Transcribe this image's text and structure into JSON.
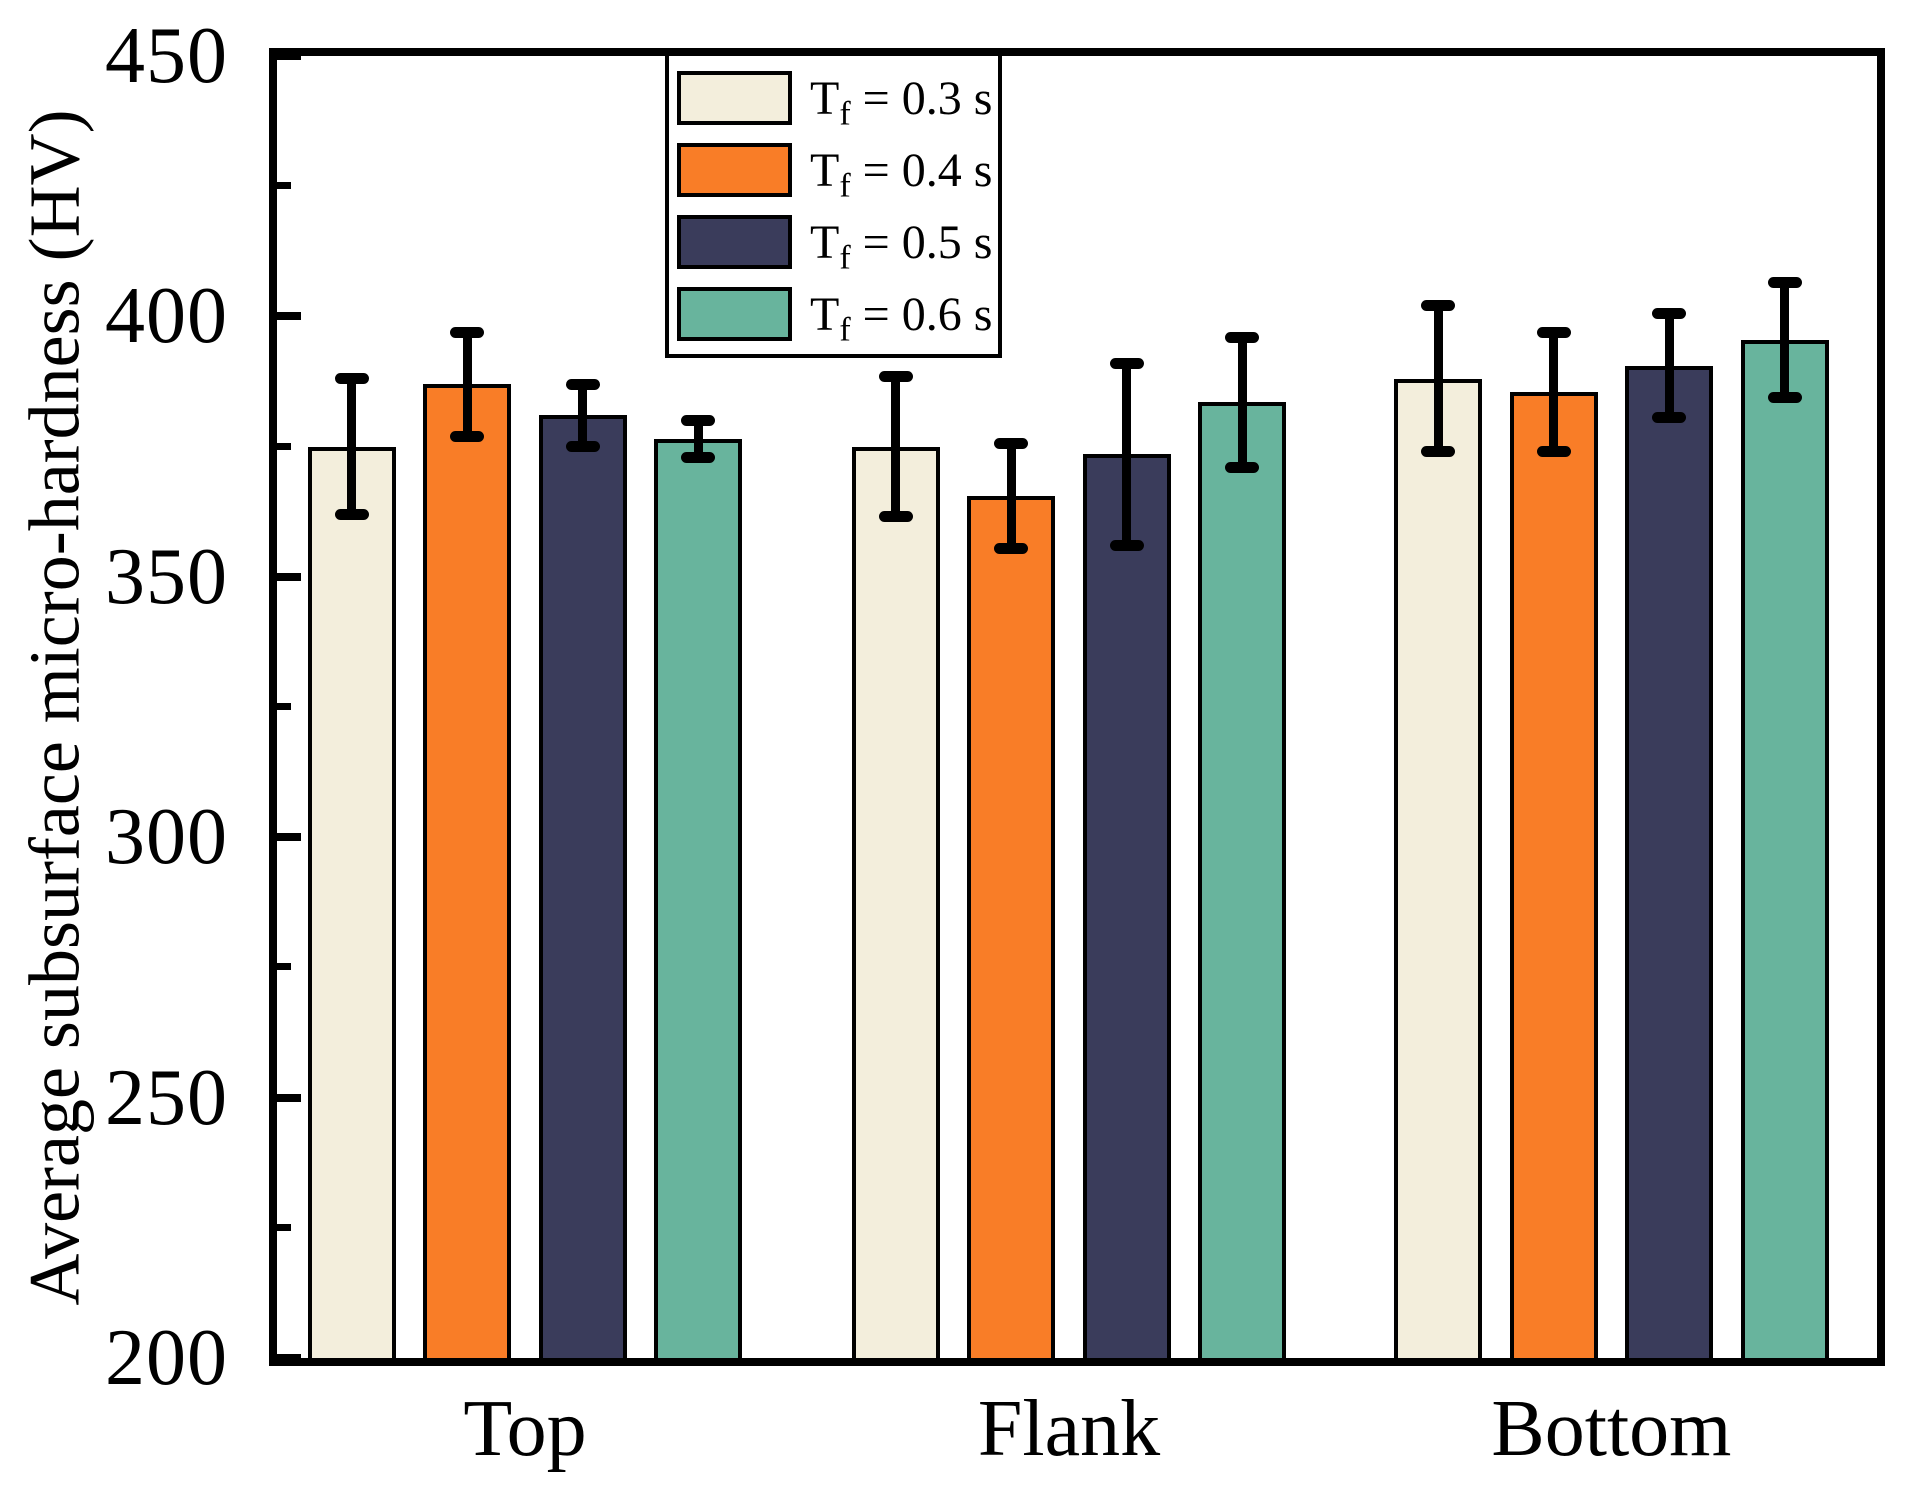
{
  "chart_data": {
    "type": "bar",
    "title": "",
    "xlabel": "",
    "ylabel": "Average subsurface micro-hardness (HV)",
    "categories": [
      "Top",
      "Flank",
      "Bottom"
    ],
    "ylim": [
      200,
      450
    ],
    "yticks": [
      200,
      250,
      300,
      350,
      400,
      450
    ],
    "ytick_major_step": 50,
    "ytick_minor_step": 25,
    "grid": false,
    "legend_position": "top-inside-left",
    "bar_edge_color": "#000000",
    "error_bar_color": "#000000",
    "series": [
      {
        "name": "Tf = 0.3 s",
        "label_base": "T",
        "label_sub": "f",
        "label_rest": " = 0.3 s",
        "color": "#F3EEDC",
        "values": [
          375,
          375,
          388
        ],
        "errors": [
          13,
          13.5,
          14
        ]
      },
      {
        "name": "Tf = 0.4 s",
        "label_base": "T",
        "label_sub": "f",
        "label_rest": " = 0.4 s",
        "color": "#F97D27",
        "values": [
          387,
          365.5,
          385.5
        ],
        "errors": [
          10,
          10,
          11.5
        ]
      },
      {
        "name": "Tf = 0.5 s",
        "label_base": "T",
        "label_sub": "f",
        "label_rest": " = 0.5 s",
        "color": "#3A3C5B",
        "values": [
          381,
          373.5,
          390.5
        ],
        "errors": [
          6,
          17.5,
          10
        ]
      },
      {
        "name": "Tf = 0.6 s",
        "label_base": "T",
        "label_sub": "f",
        "label_rest": " = 0.6 s",
        "color": "#68B49D",
        "values": [
          376.5,
          383.5,
          395.5
        ],
        "errors": [
          3.5,
          12.5,
          11
        ]
      }
    ]
  }
}
